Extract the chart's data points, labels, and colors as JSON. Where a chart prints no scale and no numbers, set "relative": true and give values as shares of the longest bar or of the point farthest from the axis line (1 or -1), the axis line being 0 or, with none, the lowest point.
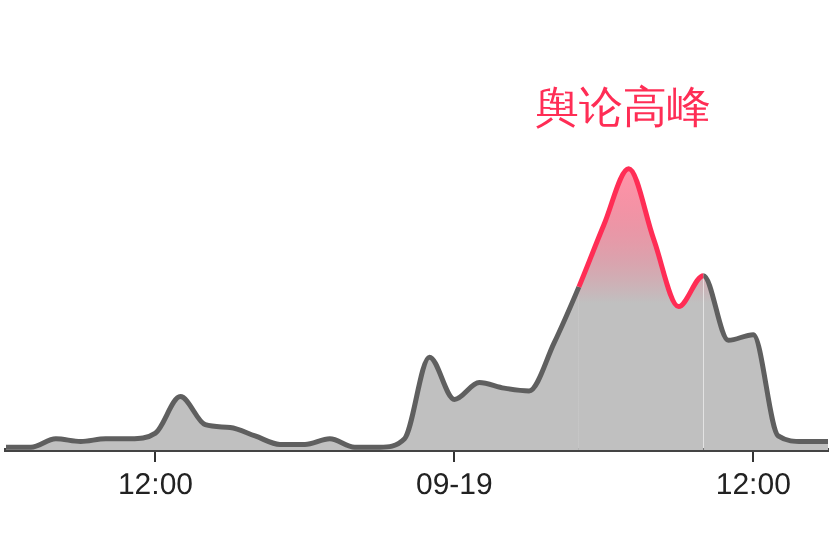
{
  "chart_data": {
    "type": "area",
    "relative": true,
    "categories": [
      null,
      null,
      null,
      null,
      null,
      null,
      "12:00",
      null,
      null,
      null,
      null,
      null,
      null,
      null,
      null,
      null,
      null,
      null,
      "09-19",
      null,
      null,
      null,
      null,
      null,
      null,
      null,
      null,
      null,
      null,
      null,
      "12:00",
      null,
      null,
      null
    ],
    "series": [
      {
        "color": "#5f5f5f",
        "values": [
          0.01,
          0.01,
          0.04,
          0.03,
          0.04,
          0.04,
          0.06,
          0.19,
          0.09,
          0.08,
          0.05,
          0.02,
          0.02,
          0.04,
          0.01,
          0.01,
          0.04,
          0.33,
          0.18,
          0.24,
          0.22,
          0.21,
          0.38,
          0.58,
          0.8,
          1,
          0.75,
          0.51,
          0.62,
          0.39,
          0.41,
          0.05,
          0.03,
          0.03
        ]
      }
    ],
    "annotations": [
      "舆论高峰"
    ],
    "legend": false,
    "marker": "none",
    "line_style": "solid"
  }
}
